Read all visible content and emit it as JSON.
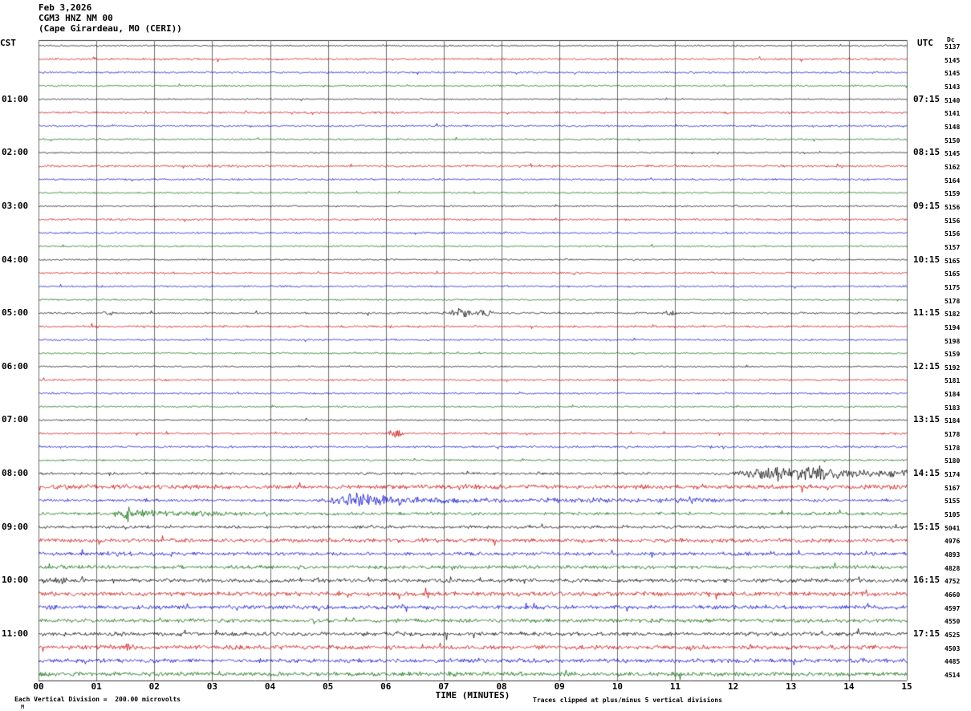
{
  "header": {
    "date": "Feb 3,2026",
    "station": "CGM3 HNZ NM 00",
    "location": "(Cape Girardeau, MO (CERI))",
    "left_tz": "CST",
    "right_tz": "UTC",
    "dc_header": "Dc"
  },
  "footer": {
    "scale_note": "Each Vertical Division =  200.00 microvolts",
    "clip_note": "Traces clipped at plus/minus 5 vertical divisions",
    "watermark": "M"
  },
  "chart_data": {
    "type": "line",
    "title": "CGM3 HNZ NM 00 (Cape Girardeau, MO (CERI)) helicorder",
    "xlabel": "TIME (MINUTES)",
    "x_range_minutes": [
      0,
      15
    ],
    "x_ticks": [
      "00",
      "01",
      "02",
      "03",
      "04",
      "05",
      "06",
      "07",
      "08",
      "09",
      "10",
      "11",
      "12",
      "13",
      "14",
      "15"
    ],
    "minutes_per_line": 15,
    "vertical_division_microvolts": 200.0,
    "clip_divisions": 5,
    "colors": {
      "black": "#000000",
      "red": "#cc0000",
      "blue": "#0000cc",
      "green": "#006600"
    },
    "color_cycle": [
      "black",
      "red",
      "blue",
      "green"
    ],
    "traces": [
      {
        "dc": 5137,
        "amp": 0.7
      },
      {
        "dc": 5145,
        "amp": 1.0
      },
      {
        "dc": 5145,
        "amp": 0.9
      },
      {
        "dc": 5143,
        "amp": 0.8
      },
      {
        "dc": 5140,
        "cst": "01:00",
        "utc": "07:15",
        "amp": 0.7
      },
      {
        "dc": 5141,
        "amp": 1.0
      },
      {
        "dc": 5148,
        "amp": 0.9
      },
      {
        "dc": 5150,
        "amp": 0.8
      },
      {
        "dc": 5145,
        "cst": "02:00",
        "utc": "08:15",
        "amp": 0.7
      },
      {
        "dc": 5162,
        "amp": 1.1
      },
      {
        "dc": 5164,
        "amp": 0.9
      },
      {
        "dc": 5159,
        "amp": 0.8
      },
      {
        "dc": 5156,
        "cst": "03:00",
        "utc": "09:15",
        "amp": 0.7
      },
      {
        "dc": 5156,
        "amp": 1.0
      },
      {
        "dc": 5156,
        "amp": 0.9
      },
      {
        "dc": 5157,
        "amp": 0.8
      },
      {
        "dc": 5165,
        "cst": "04:00",
        "utc": "10:15",
        "amp": 0.7
      },
      {
        "dc": 5165,
        "amp": 1.0
      },
      {
        "dc": 5175,
        "amp": 0.9
      },
      {
        "dc": 5178,
        "amp": 0.8
      },
      {
        "dc": 5182,
        "cst": "05:00",
        "utc": "11:15",
        "amp": 0.9,
        "events": [
          [
            1.2,
            2.5,
            0.08
          ],
          [
            7.25,
            7,
            0.14
          ],
          [
            7.7,
            4,
            0.1
          ],
          [
            10.9,
            4,
            0.08
          ]
        ]
      },
      {
        "dc": 5194,
        "amp": 1.1
      },
      {
        "dc": 5198,
        "amp": 0.9
      },
      {
        "dc": 5159,
        "amp": 0.8
      },
      {
        "dc": 5192,
        "cst": "06:00",
        "utc": "12:15",
        "amp": 0.7
      },
      {
        "dc": 5181,
        "amp": 1.0
      },
      {
        "dc": 5184,
        "amp": 0.9
      },
      {
        "dc": 5183,
        "amp": 0.8
      },
      {
        "dc": 5184,
        "cst": "07:00",
        "utc": "13:15",
        "amp": 0.8
      },
      {
        "dc": 5178,
        "amp": 1.0,
        "events": [
          [
            6.15,
            6,
            0.08
          ]
        ]
      },
      {
        "dc": 5178,
        "amp": 1.0
      },
      {
        "dc": 5180,
        "amp": 0.9
      },
      {
        "dc": 5174,
        "cst": "08:00",
        "utc": "14:15",
        "amp": 1.2,
        "events": [
          [
            12.55,
            8,
            0.3
          ],
          [
            13.15,
            8,
            0.4
          ],
          [
            13.9,
            5,
            0.5
          ],
          [
            14.7,
            3.5,
            0.6
          ]
        ]
      },
      {
        "dc": 5167,
        "amp": 2.2,
        "events": [
          [
            0.6,
            2,
            0.8
          ]
        ]
      },
      {
        "dc": 5155,
        "amp": 1.4,
        "events": [
          [
            5.45,
            8,
            0.25
          ],
          [
            5.9,
            6,
            0.3
          ],
          [
            6.8,
            3,
            0.8
          ],
          [
            9.0,
            2,
            1.5
          ],
          [
            11.3,
            3,
            0.35
          ]
        ]
      },
      {
        "dc": 5105,
        "amp": 1.5,
        "events": [
          [
            1.55,
            9,
            0.12
          ],
          [
            1.85,
            4,
            0.3
          ],
          [
            2.6,
            2.5,
            0.8
          ]
        ]
      },
      {
        "dc": 5041,
        "cst": "09:00",
        "utc": "15:15",
        "amp": 1.5
      },
      {
        "dc": 4976,
        "amp": 2.0
      },
      {
        "dc": 4893,
        "amp": 1.8,
        "events": [
          [
            1.4,
            3,
            0.25
          ]
        ]
      },
      {
        "dc": 4828,
        "amp": 1.8
      },
      {
        "dc": 4752,
        "cst": "10:00",
        "utc": "16:15",
        "amp": 1.9,
        "events": [
          [
            0.35,
            4,
            0.15
          ]
        ]
      },
      {
        "dc": 4660,
        "amp": 2.2
      },
      {
        "dc": 4597,
        "amp": 2.0
      },
      {
        "dc": 4550,
        "amp": 1.9
      },
      {
        "dc": 4525,
        "cst": "11:00",
        "utc": "17:15",
        "amp": 2.0
      },
      {
        "dc": 4503,
        "amp": 2.2,
        "events": [
          [
            1.5,
            4,
            0.25
          ]
        ]
      },
      {
        "dc": 4485,
        "amp": 2.0
      },
      {
        "dc": 4514,
        "amp": 2.1
      }
    ]
  }
}
